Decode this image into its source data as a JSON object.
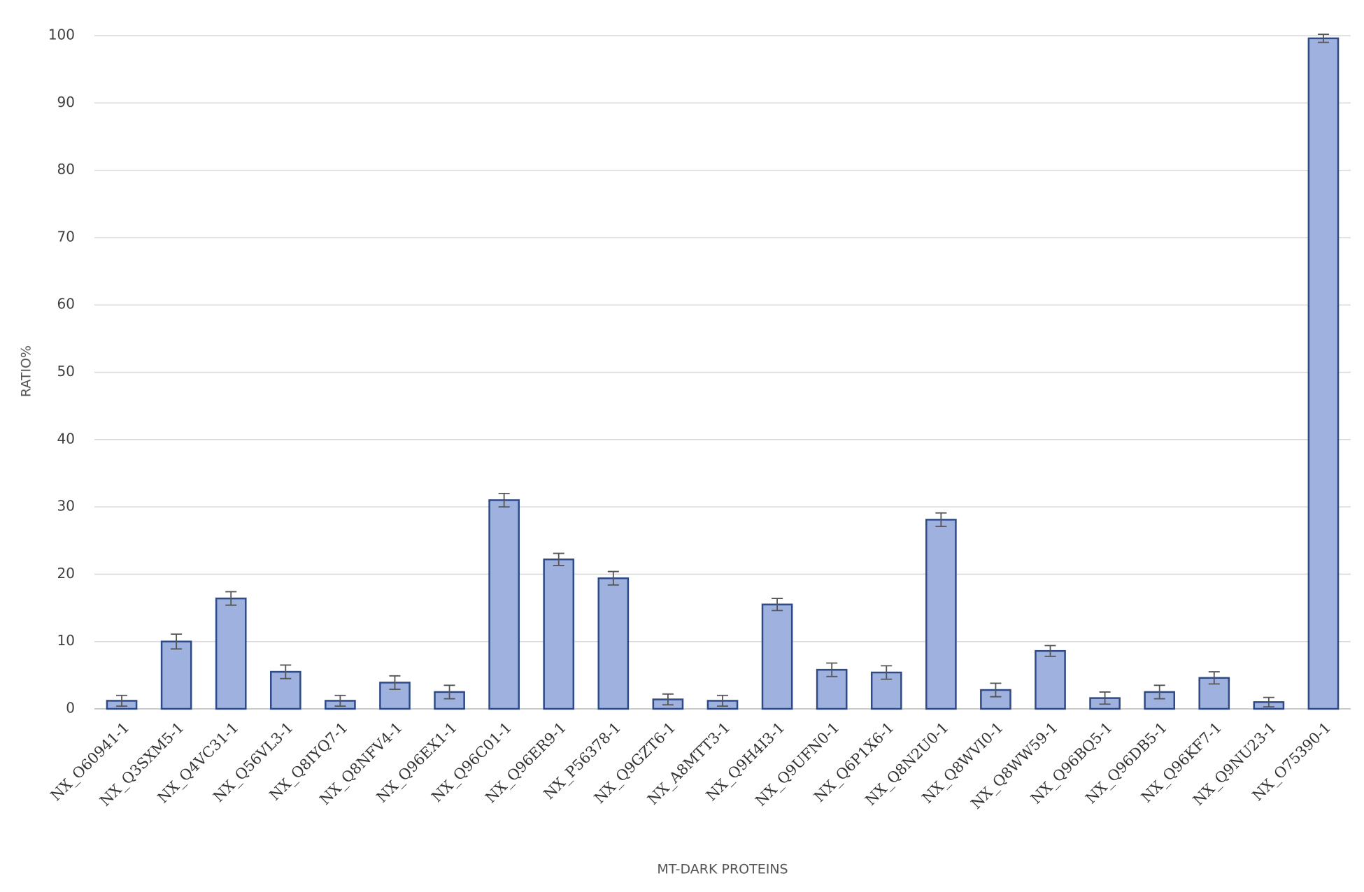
{
  "chart_data": {
    "type": "bar",
    "x_label": "MT-DARK PROTEINS",
    "y_label": "RATIO%",
    "categories": [
      "NX_O60941-1",
      "NX_Q3SXM5-1",
      "NX_Q4VC31-1",
      "NX_Q56VL3-1",
      "NX_Q8IYQ7-1",
      "NX_Q8NFV4-1",
      "NX_Q96EX1-1",
      "NX_Q96C01-1",
      "NX_Q96ER9-1",
      "NX_P56378-1",
      "NX_Q9GZT6-1",
      "NX_A8MTT3-1",
      "NX_Q9H4I3-1",
      "NX_Q9UFN0-1",
      "NX_Q6P1X6-1",
      "NX_Q8N2U0-1",
      "NX_Q8WVI0-1",
      "NX_Q8WW59-1",
      "NX_Q96BQ5-1",
      "NX_Q96DB5-1",
      "NX_Q96KF7-1",
      "NX_Q9NU23-1",
      "NX_O75390-1"
    ],
    "values": [
      1.2,
      10,
      16.4,
      5.5,
      1.2,
      3.9,
      2.5,
      31,
      22.2,
      19.4,
      1.4,
      1.2,
      15.5,
      5.8,
      5.4,
      28.1,
      2.8,
      8.6,
      1.6,
      2.5,
      4.6,
      1,
      99.6
    ],
    "errors": [
      0.8,
      1.1,
      1,
      1,
      0.8,
      1,
      1,
      1,
      0.9,
      1,
      0.8,
      0.8,
      0.9,
      1,
      1,
      1,
      1,
      0.8,
      0.9,
      1,
      0.9,
      0.7,
      0.6
    ],
    "color": "#9fb1de",
    "edgecolor": "#2e4a87",
    "ylim": [
      0,
      100
    ],
    "yticks": [
      0,
      10,
      20,
      30,
      40,
      50,
      60,
      70,
      80,
      90,
      100
    ],
    "grid": true
  }
}
